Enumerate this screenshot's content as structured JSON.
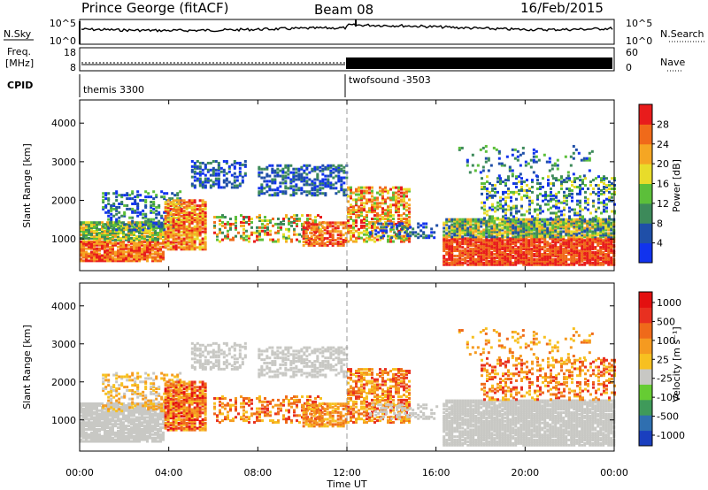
{
  "header": {
    "station": "Prince George (fitACF)",
    "beam": "Beam 08",
    "date": "16/Feb/2015"
  },
  "status_panels": {
    "nsky_label": "N.Sky",
    "nsearch_label": "N.Search",
    "nsky_ticks": [
      "10^5",
      "10^0"
    ],
    "nsearch_ticks": [
      "10^5",
      "10^0"
    ],
    "freq_label": "Freq.",
    "freq_unit": "[MHz]",
    "freq_ticks": [
      "18",
      "8"
    ],
    "nave_label": "Nave",
    "nave_ticks": [
      "60",
      "0"
    ],
    "cpid_label": "CPID",
    "cpid_segments": [
      {
        "name": "themis 3300",
        "start_hour": 0,
        "end_hour": 12
      },
      {
        "name": "twofsound -3503",
        "start_hour": 12,
        "end_hour": 24
      }
    ]
  },
  "x_axis": {
    "title": "Time UT",
    "tick_labels": [
      "00:00",
      "04:00",
      "08:00",
      "12:00",
      "16:00",
      "20:00",
      "00:00"
    ],
    "range_hours": [
      0,
      24
    ]
  },
  "chart_data": [
    {
      "type": "heatmap",
      "name": "power",
      "ylabel": "Slant Range [km]",
      "y_ticks": [
        "1000",
        "2000",
        "3000",
        "4000"
      ],
      "ylim_km": [
        180,
        4600
      ],
      "colorbar_label": "Power [dB]",
      "colorbar_ticks": [
        "4",
        "8",
        "12",
        "16",
        "20",
        "24",
        "28"
      ],
      "colorbar_range": [
        0,
        30
      ],
      "colors": [
        "#1133ee",
        "#1f4fa8",
        "#3d8a5a",
        "#5cbf3a",
        "#e8dc2a",
        "#f5a623",
        "#f06a1a",
        "#e81c1c"
      ]
    },
    {
      "type": "heatmap",
      "name": "velocity",
      "ylabel": "Slant Range [km]",
      "y_ticks": [
        "1000",
        "2000",
        "3000",
        "4000"
      ],
      "ylim_km": [
        180,
        4600
      ],
      "colorbar_label": "Velocity [m s⁻¹]",
      "colorbar_ticks": [
        "1000",
        "500",
        "100",
        "25",
        "-25",
        "-100",
        "-500",
        "-1000"
      ],
      "colors": [
        "#1a3fbf",
        "#2f6fb0",
        "#3f9a5a",
        "#66cc33",
        "#c8c8c4",
        "#f7c020",
        "#f59a20",
        "#ef6a1a",
        "#e83020",
        "#e31010"
      ]
    }
  ]
}
